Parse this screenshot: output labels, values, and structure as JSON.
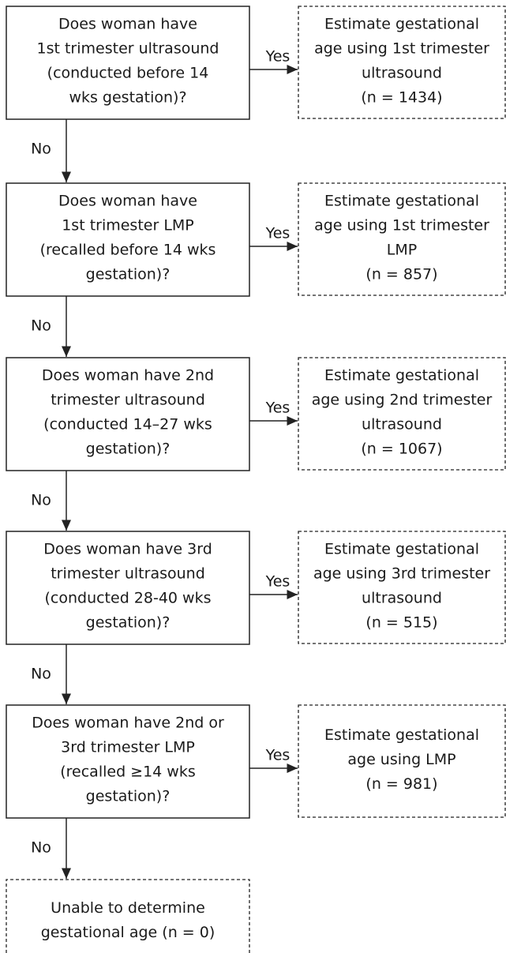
{
  "steps": [
    {
      "question": [
        "Does woman have",
        "1st trimester ultrasound",
        "(conducted before 14",
        "wks gestation)?"
      ],
      "yes": "Yes",
      "outcome": [
        "Estimate gestational",
        "age using 1st trimester",
        "ultrasound",
        "(n = 1434)"
      ],
      "no": "No"
    },
    {
      "question": [
        "Does woman have",
        "1st trimester LMP",
        "(recalled before 14 wks",
        "gestation)?"
      ],
      "yes": "Yes",
      "outcome": [
        "Estimate gestational",
        "age using 1st trimester",
        "LMP",
        "(n = 857)"
      ],
      "no": "No"
    },
    {
      "question": [
        "Does woman have 2nd",
        "trimester ultrasound",
        "(conducted 14–27 wks",
        "gestation)?"
      ],
      "yes": "Yes",
      "outcome": [
        "Estimate gestational",
        "age using 2nd trimester",
        "ultrasound",
        "(n = 1067)"
      ],
      "no": "No"
    },
    {
      "question": [
        "Does woman have 3rd",
        "trimester ultrasound",
        "(conducted 28-40 wks",
        "gestation)?"
      ],
      "yes": "Yes",
      "outcome": [
        "Estimate gestational",
        "age using 3rd trimester",
        "ultrasound",
        "(n = 515)"
      ],
      "no": "No"
    },
    {
      "question": [
        "Does woman have 2nd or",
        "3rd trimester LMP",
        "(recalled ≥14 wks",
        "gestation)?"
      ],
      "yes": "Yes",
      "outcome": [
        "Estimate gestational",
        "age using LMP",
        "(n = 981)"
      ],
      "no": "No"
    }
  ],
  "final": [
    "Unable to determine",
    "gestational age (n = 0)"
  ]
}
